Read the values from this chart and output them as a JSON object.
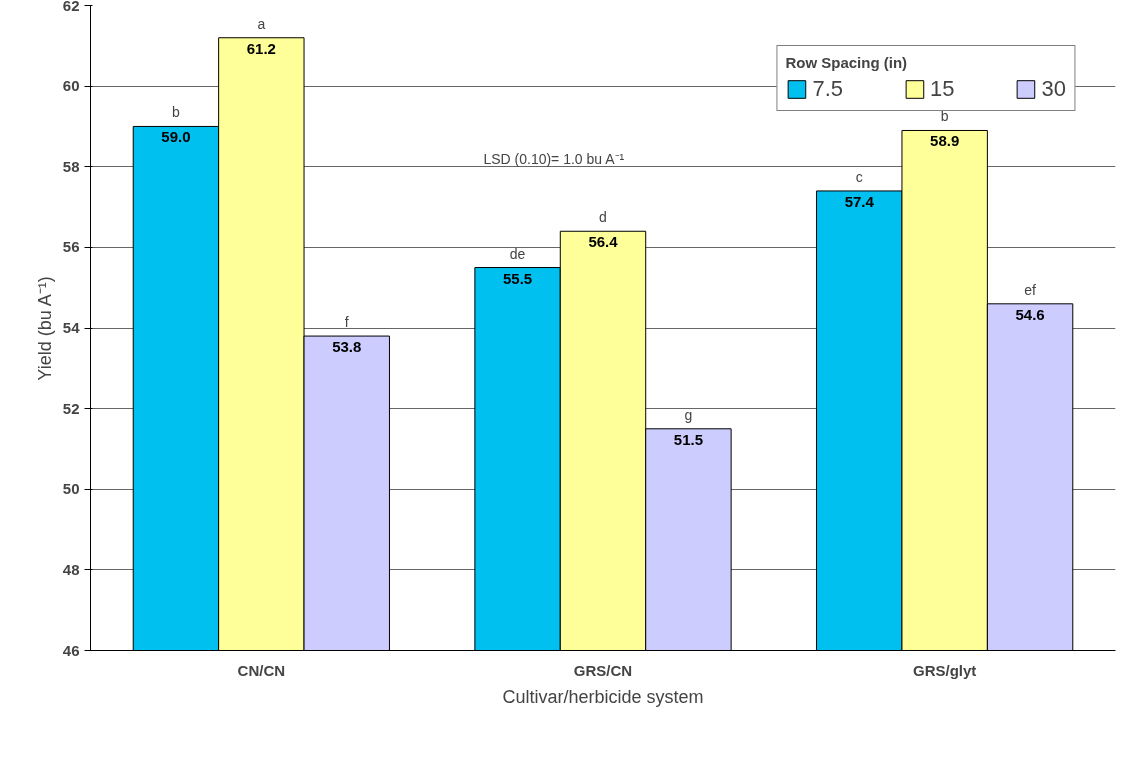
{
  "chart_data": {
    "type": "bar",
    "xlabel": "Cultivar/herbicide system",
    "ylabel": "Yield (bu A⁻¹)",
    "legend_title": "Row Spacing (in)",
    "categories": [
      "CN/CN",
      "GRS/CN",
      "GRS/glyt"
    ],
    "series": [
      {
        "name": "7.5",
        "color": "#00c0f0",
        "values": [
          59.0,
          55.5,
          57.4
        ],
        "value_labels": [
          "59.0",
          "55.5",
          "57.4"
        ]
      },
      {
        "name": "15",
        "color": "#ffff99",
        "values": [
          61.2,
          56.4,
          58.9
        ],
        "value_labels": [
          "61.2",
          "56.4",
          "58.9"
        ]
      },
      {
        "name": "30",
        "color": "#ccccff",
        "values": [
          53.8,
          51.5,
          54.6
        ],
        "value_labels": [
          "53.8",
          "51.5",
          "54.6"
        ]
      }
    ],
    "ylim": [
      46,
      62
    ],
    "yticks": [
      46,
      48,
      50,
      52,
      54,
      56,
      58,
      60,
      62
    ],
    "grid": "y",
    "legend": "top right",
    "annotations": [
      "LSD (0.10)= 1.0 bu A⁻¹",
      "b",
      "a",
      "f",
      "de",
      "d",
      "g",
      "c",
      "b",
      "ef"
    ]
  }
}
